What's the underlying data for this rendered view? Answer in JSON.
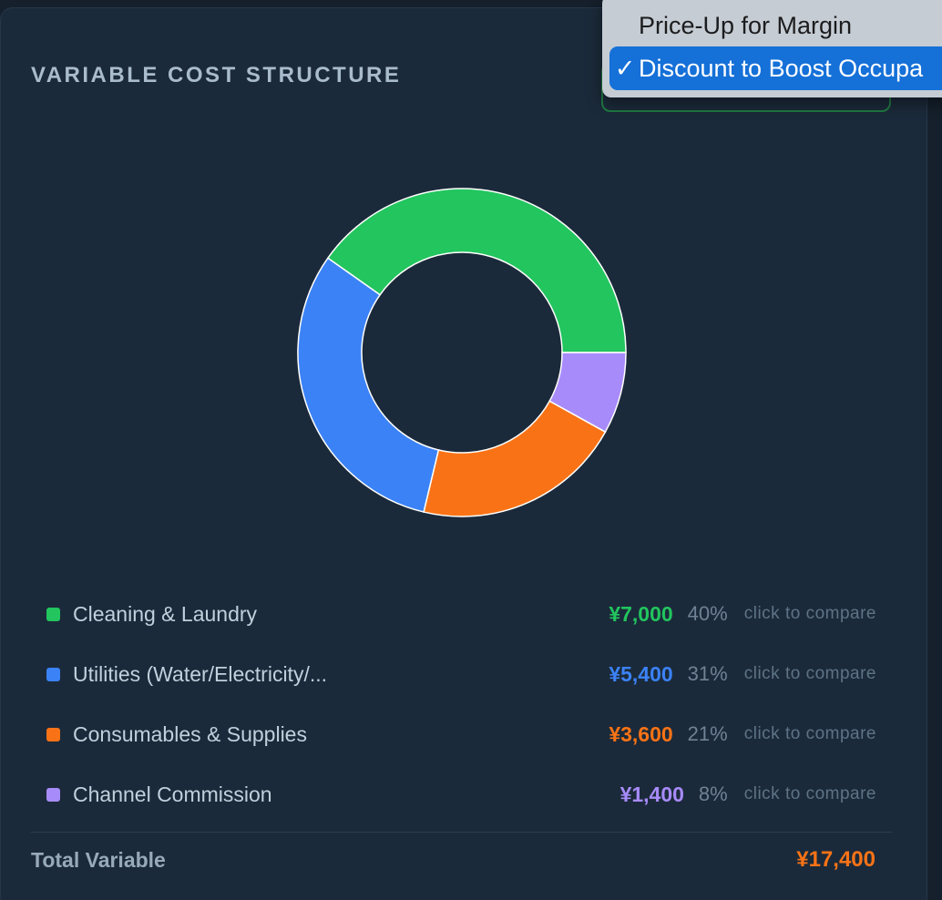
{
  "card": {
    "title": "VARIABLE COST STRUCTURE",
    "total_label": "Total Variable",
    "total_value": "¥17,400"
  },
  "scenario_select": {
    "options": [
      "Price-Up for Margin",
      "Discount to Boost Occupa"
    ],
    "selected_index": 1,
    "checkmark": "✓"
  },
  "colors": {
    "green": "#22c55e",
    "blue": "#3b82f6",
    "orange": "#f97316",
    "purple": "#a78bfa",
    "accent_select": "#1570d8"
  },
  "legend": [
    {
      "label": "Cleaning & Laundry",
      "value": "¥7,000",
      "pct": "40%",
      "action": "click to compare",
      "color": "#22c55e"
    },
    {
      "label": "Utilities (Water/Electricity/...",
      "value": "¥5,400",
      "pct": "31%",
      "action": "click to compare",
      "color": "#3b82f6"
    },
    {
      "label": "Consumables & Supplies",
      "value": "¥3,600",
      "pct": "21%",
      "action": "click to compare",
      "color": "#f97316"
    },
    {
      "label": "Channel Commission",
      "value": "¥1,400",
      "pct": "8%",
      "action": "click to compare",
      "color": "#a78bfa"
    }
  ],
  "chart_data": {
    "type": "pie",
    "variant": "donut",
    "categories": [
      "Cleaning & Laundry",
      "Utilities (Water/Electricity/...",
      "Consumables & Supplies",
      "Channel Commission"
    ],
    "values": [
      7000,
      5400,
      3600,
      1400
    ],
    "colors": [
      "#22c55e",
      "#3b82f6",
      "#f97316",
      "#a78bfa"
    ],
    "start": "3 o'clock",
    "direction": "counter-clockwise"
  }
}
